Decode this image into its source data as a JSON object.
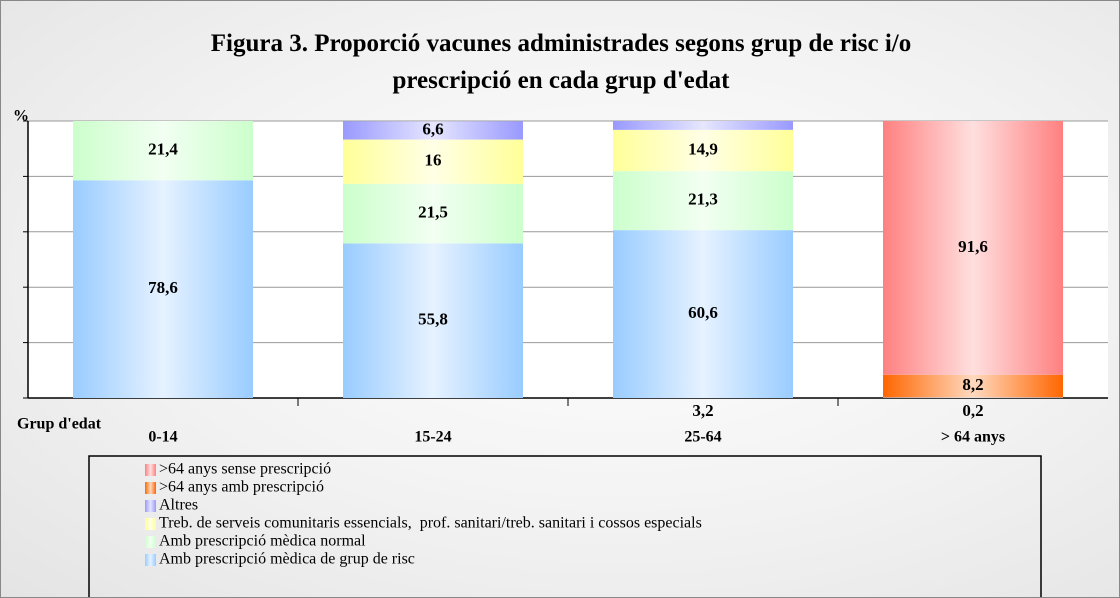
{
  "chart_data": {
    "type": "bar",
    "stacked": true,
    "title": "Figura 3. Proporció vacunes administrades segons grup de risc i/o prescripció en cada grup d'edat",
    "y_label": "%",
    "x_label": "Grup d'edat",
    "categories": [
      "0-14",
      "15-24",
      "25-64",
      "> 64 anys"
    ],
    "ylim": [
      0,
      100
    ],
    "yticks": [
      0,
      20,
      40,
      60,
      80,
      100
    ],
    "grid": true,
    "series": [
      {
        "name": ">64 anys sense prescripció",
        "color": "#ff8080",
        "values": [
          null,
          null,
          null,
          91.6
        ],
        "value_labels": [
          null,
          null,
          null,
          "91,6"
        ]
      },
      {
        "name": ">64 anys amb prescripció",
        "color": "#ff6600",
        "values": [
          null,
          null,
          null,
          8.2
        ],
        "value_labels": [
          null,
          null,
          null,
          "8,2"
        ]
      },
      {
        "name": "Altres",
        "color": "#9999ff",
        "values": [
          null,
          6.6,
          3.2,
          null
        ],
        "value_labels": [
          null,
          "6,6",
          "3,2",
          null
        ]
      },
      {
        "name": "Treb. de serveis comunitaris essencials,  prof. sanitari/treb. sanitari i cossos especials",
        "color": "#ffff99",
        "values": [
          null,
          16,
          14.9,
          null
        ],
        "value_labels": [
          null,
          "16",
          "14,9",
          null
        ]
      },
      {
        "name": "Amb prescripció mèdica normal",
        "color": "#ccffcc",
        "values": [
          21.4,
          21.5,
          21.3,
          null
        ],
        "value_labels": [
          "21,4",
          "21,5",
          "21,3",
          null
        ]
      },
      {
        "name": "Amb prescripció mèdica de grup de risc",
        "color": "#99ccff",
        "values": [
          78.6,
          55.8,
          60.6,
          0.2
        ],
        "value_labels": [
          "78,6",
          "55,8",
          "60,6",
          "0,2"
        ]
      }
    ]
  }
}
